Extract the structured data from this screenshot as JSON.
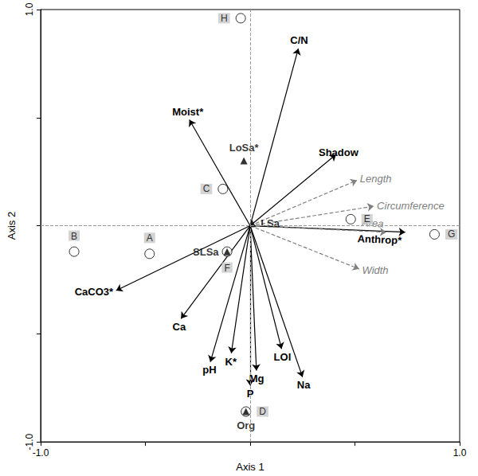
{
  "chart_data": {
    "type": "biplot",
    "xlabel": "Axis 1",
    "ylabel": "Axis 2",
    "xlim": [
      -1.0,
      1.0
    ],
    "ylim": [
      -1.0,
      1.0
    ],
    "xticks": [
      {
        "value": -1.0,
        "label": "-1.0"
      },
      {
        "value": 1.0,
        "label": "1.0"
      }
    ],
    "yticks": [
      {
        "value": -1.0,
        "label": "-1.0"
      },
      {
        "value": 1.0,
        "label": "1.0"
      }
    ],
    "origin": [
      0,
      0
    ],
    "grid": false,
    "series": [
      {
        "type": "arrow",
        "line_style": "solid",
        "color": "#000000",
        "labels": [
          "C/N",
          "Moist*",
          "Shadow",
          "Anthrop*",
          "CaCO3*",
          "Ca",
          "pH",
          "K*",
          "Mg",
          "P",
          "LOI",
          "Na"
        ],
        "x": [
          0.23,
          -0.29,
          0.41,
          0.74,
          -0.64,
          -0.33,
          -0.19,
          -0.09,
          0.03,
          0.0,
          0.15,
          0.25
        ],
        "y": [
          0.82,
          0.49,
          0.33,
          -0.03,
          -0.3,
          -0.43,
          -0.63,
          -0.59,
          -0.67,
          -0.74,
          -0.57,
          -0.7
        ]
      },
      {
        "type": "arrow",
        "line_style": "dashed",
        "color": "#808080",
        "labels": [
          "Length",
          "Circumference",
          "Area",
          "Width"
        ],
        "x": [
          0.51,
          0.59,
          0.65,
          0.52
        ],
        "y": [
          0.21,
          0.09,
          -0.03,
          -0.2
        ]
      },
      {
        "type": "scatter",
        "marker": "circle",
        "color": "#000000",
        "labels": [
          "A",
          "B",
          "C",
          "D",
          "E",
          "F",
          "G",
          "H"
        ],
        "x": [
          -0.48,
          -0.84,
          -0.13,
          -0.02,
          0.48,
          -0.11,
          0.88,
          -0.045
        ],
        "y": [
          -0.13,
          -0.12,
          0.17,
          -0.86,
          0.03,
          -0.12,
          -0.04,
          0.96
        ]
      },
      {
        "type": "scatter",
        "marker": "triangle",
        "color": "#000000",
        "labels": [
          "LoSa*",
          "SLSa",
          "LSa",
          "Org"
        ],
        "x": [
          -0.03,
          -0.11,
          0.01,
          -0.02
        ],
        "y": [
          0.3,
          -0.12,
          0.01,
          -0.86
        ]
      }
    ]
  }
}
